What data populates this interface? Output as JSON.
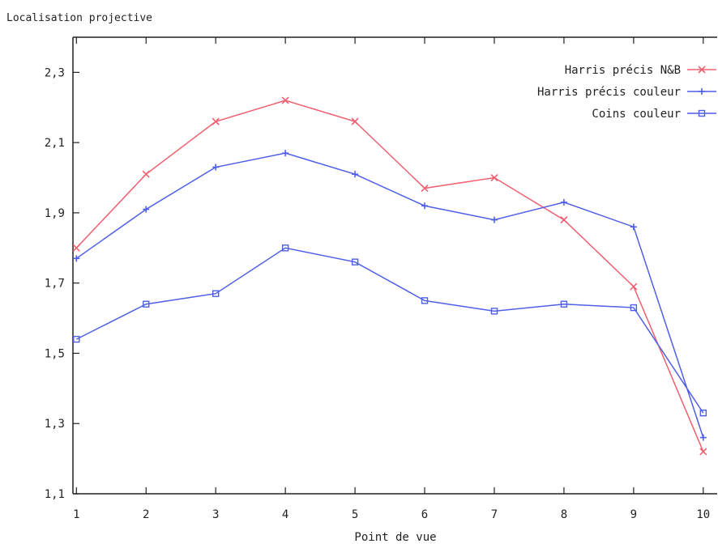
{
  "chart_data": {
    "type": "line",
    "title": "Localisation projective",
    "xlabel": "Point de vue",
    "ylabel": "",
    "x": [
      1,
      2,
      3,
      4,
      5,
      6,
      7,
      8,
      9,
      10
    ],
    "xlim": [
      0.95,
      10.2
    ],
    "ylim": [
      1.1,
      2.4
    ],
    "yticks": [
      "1,1",
      "1,3",
      "1,5",
      "1,7",
      "1,9",
      "2,1",
      "2,3"
    ],
    "ytick_values": [
      1.1,
      1.3,
      1.5,
      1.7,
      1.9,
      2.1,
      2.3
    ],
    "xticks": [
      "1",
      "2",
      "3",
      "4",
      "5",
      "6",
      "7",
      "8",
      "9",
      "10"
    ],
    "grid": false,
    "legend_position": "top-right",
    "series": [
      {
        "name": "Harris précis N&B",
        "color": "#f06070",
        "marker": "x",
        "values": [
          1.8,
          2.01,
          2.16,
          2.22,
          2.16,
          1.97,
          2.0,
          1.88,
          1.69,
          1.22
        ]
      },
      {
        "name": "Harris précis couleur",
        "color": "#4f5fe8",
        "marker": "plus",
        "values": [
          1.77,
          1.91,
          2.03,
          2.07,
          2.01,
          1.92,
          1.88,
          1.93,
          1.86,
          1.26
        ]
      },
      {
        "name": "Coins couleur",
        "color": "#4f5fe8",
        "marker": "square",
        "values": [
          1.54,
          1.64,
          1.67,
          1.8,
          1.76,
          1.65,
          1.62,
          1.64,
          1.63,
          1.33
        ]
      }
    ]
  }
}
